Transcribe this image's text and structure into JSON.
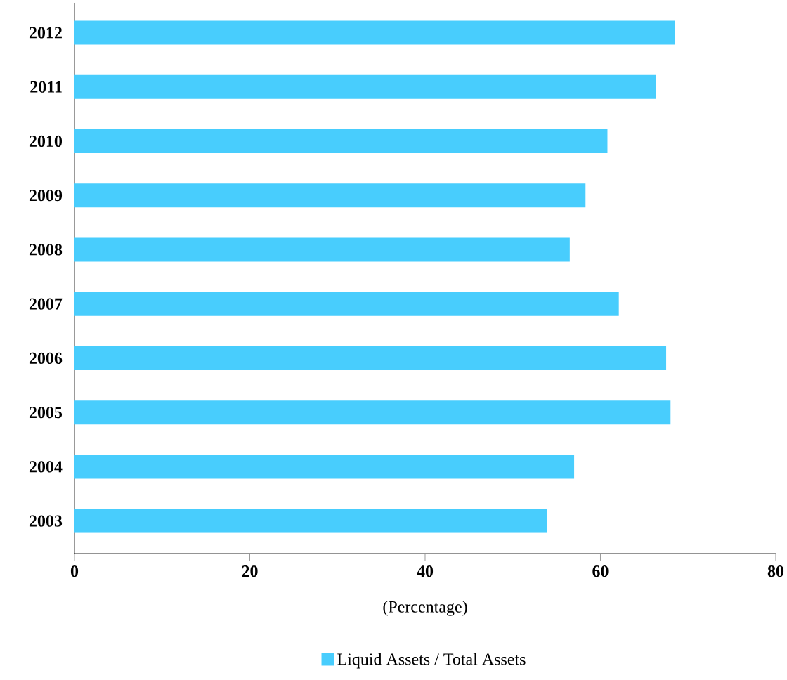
{
  "chart_data": {
    "type": "bar",
    "orientation": "horizontal",
    "xlabel": "(Percentage)",
    "categories": [
      "2012",
      "2011",
      "2010",
      "2009",
      "2008",
      "2007",
      "2006",
      "2005",
      "2004",
      "2003"
    ],
    "series": [
      {
        "name": "Liquid Assets / Total Assets",
        "color": "#48cdfd",
        "values": [
          68.5,
          66.3,
          60.8,
          58.3,
          56.5,
          62.1,
          67.5,
          68.0,
          57.0,
          53.9
        ]
      }
    ],
    "xlim": [
      0,
      80
    ],
    "xticks": [
      0,
      20,
      40,
      60,
      80
    ],
    "legend": "bottom",
    "grid": false
  }
}
